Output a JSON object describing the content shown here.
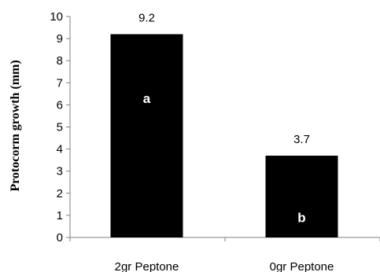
{
  "chart_data": {
    "type": "bar",
    "title": "",
    "xlabel": "",
    "ylabel": "Protocorm growth (mm)",
    "categories": [
      "2gr Peptone",
      "0gr Peptone"
    ],
    "values": [
      9.2,
      3.7
    ],
    "data_labels": [
      "9.2",
      "3.7"
    ],
    "group_letters": [
      "a",
      "b"
    ],
    "ylim": [
      0,
      10
    ],
    "yticks": [
      0,
      1,
      2,
      3,
      4,
      5,
      6,
      7,
      8,
      9,
      10
    ],
    "grid": false,
    "legend": "none",
    "bar_color": "#000000",
    "letter_color": "#ffffff",
    "letter_values": [
      6.3,
      0.9
    ]
  }
}
